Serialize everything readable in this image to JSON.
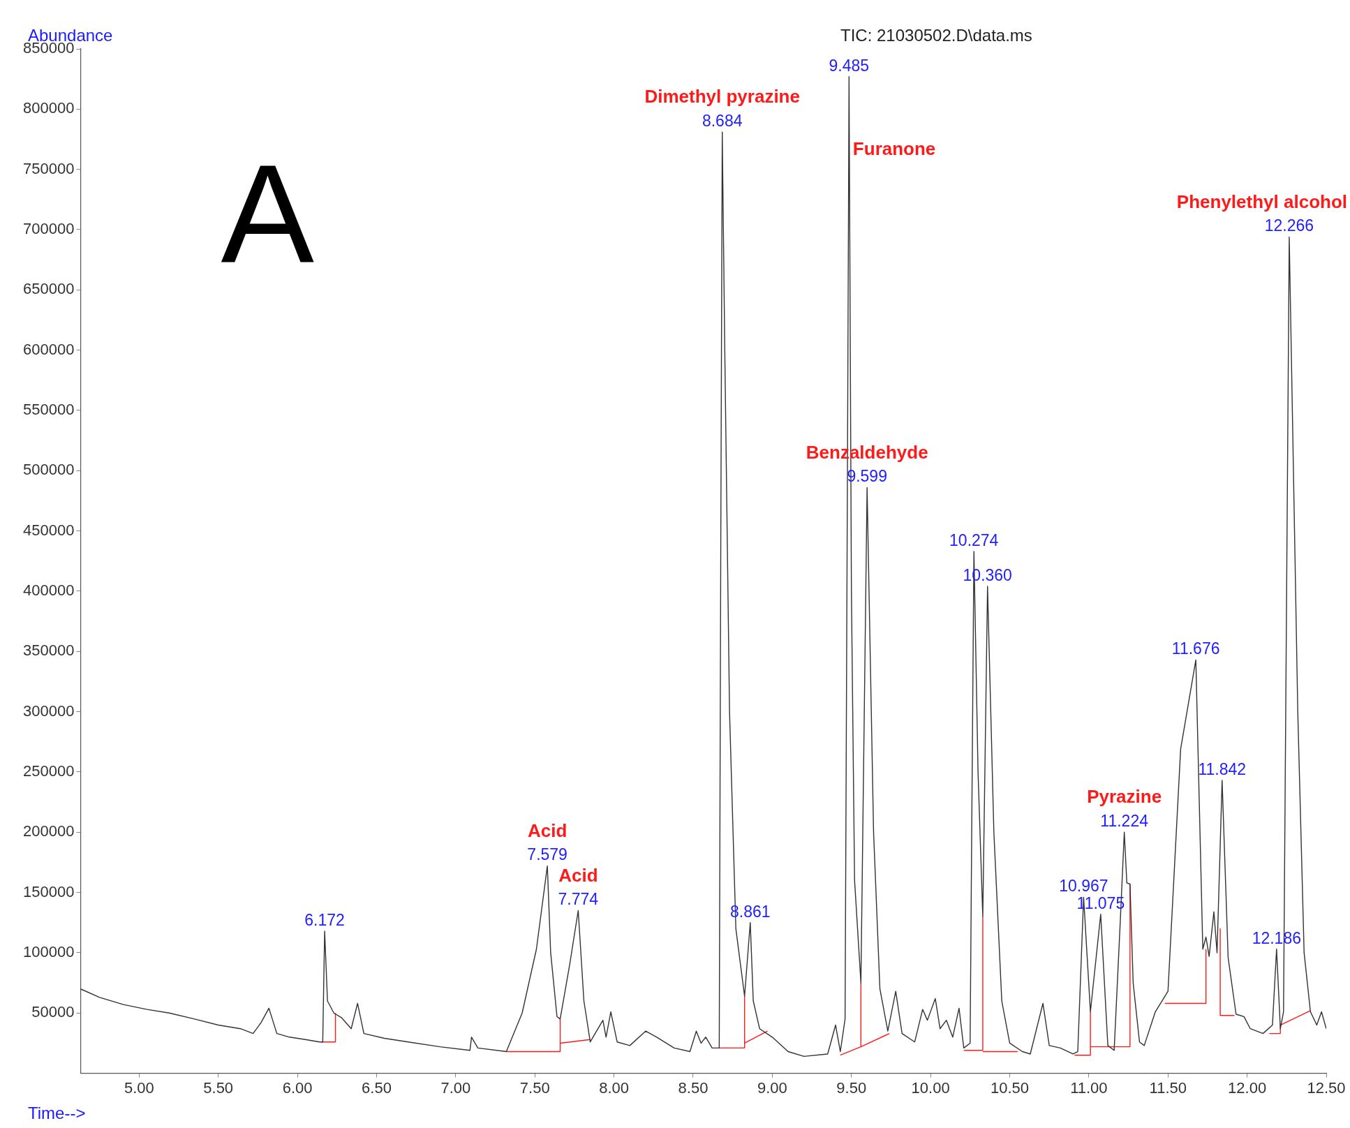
{
  "chart_data": {
    "type": "line",
    "title": "TIC: 21030502.D\\data.ms",
    "xlabel": "Time-->",
    "ylabel": "Abundance",
    "xlim": [
      4.63,
      12.5
    ],
    "ylim": [
      0,
      850000
    ],
    "xticks": [
      {
        "value": 5,
        "label": "5.00"
      },
      {
        "value": 5.5,
        "label": "5.50"
      },
      {
        "value": 6,
        "label": "6.00"
      },
      {
        "value": 6.5,
        "label": "6.50"
      },
      {
        "value": 7,
        "label": "7.00"
      },
      {
        "value": 7.5,
        "label": "7.50"
      },
      {
        "value": 8,
        "label": "8.00"
      },
      {
        "value": 8.5,
        "label": "8.50"
      },
      {
        "value": 9,
        "label": "9.00"
      },
      {
        "value": 9.5,
        "label": "9.50"
      },
      {
        "value": 10,
        "label": "10.00"
      },
      {
        "value": 10.5,
        "label": "10.50"
      },
      {
        "value": 11,
        "label": "11.00"
      },
      {
        "value": 11.5,
        "label": "11.50"
      },
      {
        "value": 12,
        "label": "12.00"
      },
      {
        "value": 12.5,
        "label": "12.50"
      }
    ],
    "yticks": [
      50000,
      100000,
      150000,
      200000,
      250000,
      300000,
      350000,
      400000,
      450000,
      500000,
      550000,
      600000,
      650000,
      700000,
      750000,
      800000,
      850000
    ],
    "marker": "none",
    "line_style": "solid",
    "series": [
      {
        "color": "#333333",
        "x": [
          4.63,
          4.75,
          4.9,
          5.05,
          5.19,
          5.35,
          5.5,
          5.64,
          5.72,
          5.77,
          5.82,
          5.87,
          5.95,
          6.05,
          6.14,
          6.16,
          6.172,
          6.19,
          6.23,
          6.28,
          6.34,
          6.38,
          6.42,
          6.55,
          6.7,
          6.9,
          7.09,
          7.1,
          7.14,
          7.32,
          7.42,
          7.51,
          7.579,
          7.6,
          7.64,
          7.66,
          7.72,
          7.774,
          7.81,
          7.85,
          7.93,
          7.95,
          7.98,
          8.02,
          8.1,
          8.2,
          8.27,
          8.38,
          8.48,
          8.52,
          8.55,
          8.58,
          8.62,
          8.665,
          8.675,
          8.684,
          8.7,
          8.73,
          8.77,
          8.825,
          8.861,
          8.88,
          8.92,
          9,
          9.1,
          9.2,
          9.35,
          9.4,
          9.43,
          9.46,
          9.475,
          9.485,
          9.5,
          9.52,
          9.56,
          9.599,
          9.64,
          9.68,
          9.73,
          9.78,
          9.82,
          9.9,
          9.95,
          9.98,
          10.03,
          10.06,
          10.1,
          10.14,
          10.18,
          10.21,
          10.25,
          10.26,
          10.274,
          10.3,
          10.33,
          10.36,
          10.4,
          10.45,
          10.5,
          10.58,
          10.63,
          10.71,
          10.75,
          10.82,
          10.9,
          10.93,
          10.967,
          11.01,
          11.075,
          11.12,
          11.16,
          11.2,
          11.224,
          11.24,
          11.26,
          11.28,
          11.32,
          11.35,
          11.42,
          11.5,
          11.58,
          11.676,
          11.72,
          11.74,
          11.76,
          11.79,
          11.81,
          11.842,
          11.88,
          11.93,
          11.98,
          12.02,
          12.1,
          12.16,
          12.186,
          12.21,
          12.23,
          12.266,
          12.32,
          12.36,
          12.4,
          12.44,
          12.47,
          12.5
        ],
        "values": [
          70000,
          63000,
          57000,
          53000,
          50000,
          45000,
          40000,
          37000,
          33000,
          42000,
          54000,
          33000,
          30000,
          28000,
          26000,
          26000,
          118000,
          60000,
          50000,
          46000,
          37000,
          58000,
          33000,
          29000,
          26000,
          22000,
          19000,
          30000,
          21000,
          18000,
          50000,
          103000,
          172000,
          100000,
          47000,
          45000,
          90000,
          135000,
          60000,
          26000,
          44000,
          30000,
          51000,
          26000,
          23000,
          35000,
          30000,
          21000,
          18000,
          35000,
          25000,
          30000,
          21000,
          21000,
          450000,
          781000,
          600000,
          300000,
          120000,
          64000,
          125000,
          60000,
          37000,
          30000,
          18000,
          14000,
          16000,
          40000,
          18000,
          45000,
          500000,
          827000,
          400000,
          160000,
          75000,
          486000,
          200000,
          70000,
          35000,
          68000,
          33000,
          26000,
          53000,
          44000,
          62000,
          37000,
          44000,
          30000,
          54000,
          21000,
          25000,
          200000,
          433000,
          250000,
          130000,
          404000,
          200000,
          60000,
          25000,
          18000,
          16000,
          58000,
          23000,
          21000,
          16000,
          18000,
          146000,
          51000,
          132000,
          23000,
          19000,
          130000,
          200000,
          158000,
          157000,
          75000,
          26000,
          23000,
          51000,
          68000,
          269000,
          343000,
          103000,
          113000,
          97000,
          134000,
          100000,
          243000,
          96000,
          49000,
          47000,
          37000,
          33000,
          40000,
          103000,
          37000,
          51000,
          694000,
          300000,
          100000,
          51000,
          40000,
          51000,
          37000
        ]
      },
      {
        "color": "#ff1a1a",
        "x": [
          6.15,
          6.24,
          6.24
        ],
        "values": [
          26000,
          26000,
          50000
        ]
      },
      {
        "color": "#ff1a1a",
        "x": [
          7.32,
          7.66,
          7.66
        ],
        "values": [
          18000,
          18000,
          45000
        ]
      },
      {
        "color": "#ff1a1a",
        "x": [
          7.66,
          7.85
        ],
        "values": [
          25000,
          28000
        ]
      },
      {
        "color": "#ff1a1a",
        "x": [
          8.665,
          8.825,
          8.825
        ],
        "values": [
          21000,
          21000,
          64000
        ]
      },
      {
        "color": "#ff1a1a",
        "x": [
          8.825,
          8.97
        ],
        "values": [
          25000,
          35000
        ]
      },
      {
        "color": "#ff1a1a",
        "x": [
          9.43,
          9.56,
          9.56
        ],
        "values": [
          15000,
          22000,
          75000
        ]
      },
      {
        "color": "#ff1a1a",
        "x": [
          9.56,
          9.74
        ],
        "values": [
          22000,
          33000
        ]
      },
      {
        "color": "#ff1a1a",
        "x": [
          10.21,
          10.33,
          10.33
        ],
        "values": [
          19000,
          19000,
          130000
        ]
      },
      {
        "color": "#ff1a1a",
        "x": [
          10.33,
          10.55
        ],
        "values": [
          18000,
          18000
        ]
      },
      {
        "color": "#ff1a1a",
        "x": [
          10.91,
          11.01,
          11.01
        ],
        "values": [
          15000,
          15000,
          51000
        ]
      },
      {
        "color": "#ff1a1a",
        "x": [
          11.01,
          11.26,
          11.26
        ],
        "values": [
          22000,
          22000,
          157000
        ]
      },
      {
        "color": "#ff1a1a",
        "x": [
          11.48,
          11.74,
          11.74
        ],
        "values": [
          58000,
          58000,
          103000
        ]
      },
      {
        "color": "#ff1a1a",
        "x": [
          11.83,
          11.83,
          11.92
        ],
        "values": [
          120000,
          48000,
          48000
        ]
      },
      {
        "color": "#ff1a1a",
        "x": [
          12.14,
          12.21,
          12.21,
          12.4
        ],
        "values": [
          33000,
          33000,
          40000,
          52000
        ]
      }
    ],
    "annotations": [
      "A",
      {
        "text": "6.172",
        "x": 6.172,
        "y": 118000
      },
      {
        "text": "7.579",
        "x": 7.579,
        "y": 172000
      },
      {
        "text": "7.774",
        "x": 7.774,
        "y": 135000
      },
      {
        "text": "8.684",
        "x": 8.684,
        "y": 781000
      },
      {
        "text": "8.861",
        "x": 8.861,
        "y": 125000
      },
      {
        "text": "9.485",
        "x": 9.485,
        "y": 827000
      },
      {
        "text": "9.599",
        "x": 9.599,
        "y": 486000
      },
      {
        "text": "10.274",
        "x": 10.274,
        "y": 433000
      },
      {
        "text": "10.360",
        "x": 10.36,
        "y": 404000
      },
      {
        "text": "10.967",
        "x": 10.967,
        "y": 146000
      },
      {
        "text": "11.075",
        "x": 11.075,
        "y": 132000
      },
      {
        "text": "11.224",
        "x": 11.224,
        "y": 200000
      },
      {
        "text": "11.676",
        "x": 11.676,
        "y": 343000
      },
      {
        "text": "11.842",
        "x": 11.842,
        "y": 243000
      },
      {
        "text": "12.186",
        "x": 12.186,
        "y": 103000
      },
      {
        "text": "12.266",
        "x": 12.266,
        "y": 694000
      },
      {
        "text": "Acid",
        "x": 7.579,
        "y": 172000
      },
      {
        "text": "Acid",
        "x": 7.774,
        "y": 135000
      },
      {
        "text": "Dimethyl pyrazine",
        "x": 8.684,
        "y": 781000
      },
      {
        "text": "Furanone",
        "x": 9.483,
        "y": 766000
      },
      {
        "text": "Benzaldehyde",
        "x": 9.599,
        "y": 486000
      },
      {
        "text": "Pyrazine",
        "x": 11.224,
        "y": 200000
      },
      {
        "text": "Phenylethyl alcohol",
        "x": 12.266,
        "y": 694000
      }
    ]
  }
}
